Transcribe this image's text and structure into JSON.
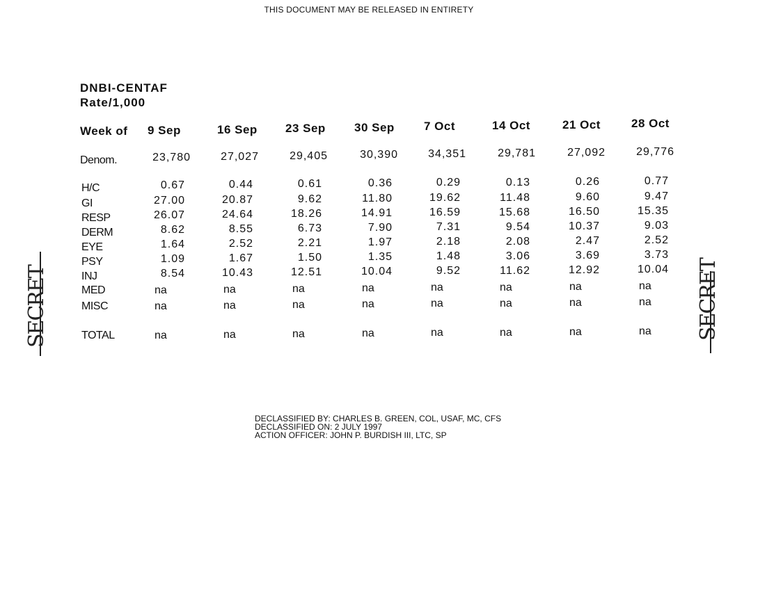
{
  "release_notice": "THIS DOCUMENT MAY BE RELEASED IN ENTIRETY",
  "title": "DNBI-CENTAF",
  "subtitle": "Rate/1,000",
  "table": {
    "week_label": "Week of",
    "weeks": [
      "9 Sep",
      "16 Sep",
      "23 Sep",
      "30 Sep",
      "7 Oct",
      "14 Oct",
      "21 Oct",
      "28 Oct"
    ],
    "denom_label": "Denom.",
    "denoms": [
      "23,780",
      "27,027",
      "29,405",
      "30,390",
      "34,351",
      "29,781",
      "27,092",
      "29,776"
    ],
    "rows": [
      {
        "label": "H/C",
        "values": [
          "0.67",
          "0.44",
          "0.61",
          "0.36",
          "0.29",
          "0.13",
          "0.26",
          "0.77"
        ]
      },
      {
        "label": "GI",
        "values": [
          "27.00",
          "20.87",
          "9.62",
          "11.80",
          "19.62",
          "11.48",
          "9.60",
          "9.47"
        ]
      },
      {
        "label": "RESP",
        "values": [
          "26.07",
          "24.64",
          "18.26",
          "14.91",
          "16.59",
          "15.68",
          "16.50",
          "15.35"
        ]
      },
      {
        "label": "DERM",
        "values": [
          "8.62",
          "8.55",
          "6.73",
          "7.90",
          "7.31",
          "9.54",
          "10.37",
          "9.03"
        ]
      },
      {
        "label": "EYE",
        "values": [
          "1.64",
          "2.52",
          "2.21",
          "1.97",
          "2.18",
          "2.08",
          "2.47",
          "2.52"
        ]
      },
      {
        "label": "PSY",
        "values": [
          "1.09",
          "1.67",
          "1.50",
          "1.35",
          "1.48",
          "3.06",
          "3.69",
          "3.73"
        ]
      },
      {
        "label": "INJ",
        "values": [
          "8.54",
          "10.43",
          "12.51",
          "10.04",
          "9.52",
          "11.62",
          "12.92",
          "10.04"
        ]
      },
      {
        "label": "MED",
        "values": [
          "na",
          "na",
          "na",
          "na",
          "na",
          "na",
          "na",
          "na"
        ]
      },
      {
        "label": "MISC",
        "values": [
          "na",
          "na",
          "na",
          "na",
          "na",
          "na",
          "na",
          "na"
        ]
      },
      {
        "label": "TOTAL",
        "values": [
          "na",
          "na",
          "na",
          "na",
          "na",
          "na",
          "na",
          "na"
        ]
      }
    ]
  },
  "stamp_left": "SECRET",
  "stamp_right": "SECRET",
  "declassification": {
    "line1": "DECLASSIFIED BY:  CHARLES B. GREEN, COL, USAF, MC, CFS",
    "line2": "DECLASSIFIED ON:  2 JULY 1997",
    "line3": "ACTION OFFICER:  JOHN P. BURDISH III, LTC, SP"
  }
}
